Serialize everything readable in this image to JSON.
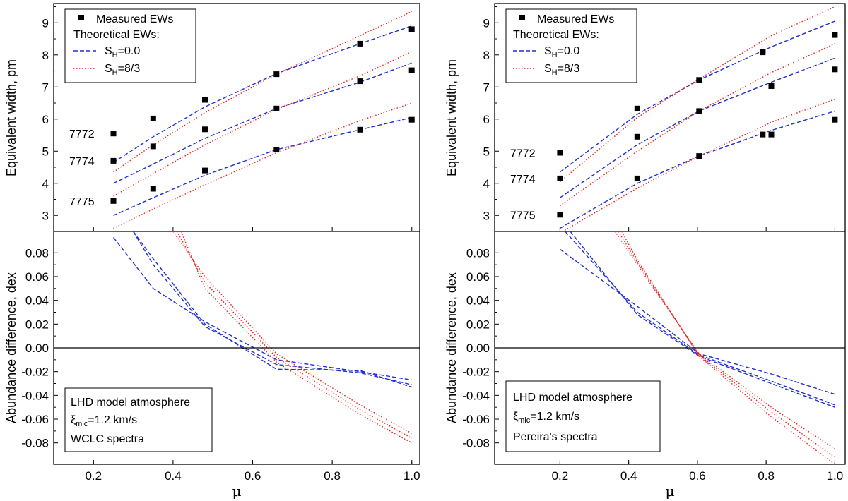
{
  "chart_data": [
    {
      "id": "left",
      "type": "line",
      "title": "",
      "xlabel": "μ",
      "xlim": [
        0.1,
        1.02
      ],
      "xticks": [
        0.2,
        0.4,
        0.6,
        0.8,
        1.0
      ],
      "xtick_labels": [
        "0.2",
        "0.4",
        "0.6",
        "0.8",
        "1.0"
      ],
      "top": {
        "ylabel": "Equivalent width, pm",
        "ylim": [
          2.5,
          9.6
        ],
        "yticks": [
          3,
          4,
          5,
          6,
          7,
          8,
          9
        ],
        "ytick_labels": [
          "3",
          "4",
          "5",
          "6",
          "7",
          "8",
          "9"
        ],
        "legend": {
          "measured": "Measured EWs",
          "theoretical": "Theoretical EWs:",
          "sh0_base": "S",
          "sh0_sub": "H",
          "sh0_rest": "=0.0",
          "sh83_base": "S",
          "sh83_sub": "H",
          "sh83_rest": "=8/3"
        },
        "line_labels": [
          {
            "text": "7772",
            "y": 5.55
          },
          {
            "text": "7774",
            "y": 4.7
          },
          {
            "text": "7775",
            "y": 3.45
          }
        ],
        "measured": [
          {
            "line": "7772",
            "x": [
              0.25,
              0.35,
              0.48,
              0.66,
              0.87,
              1.0
            ],
            "y": [
              5.55,
              6.02,
              6.6,
              7.4,
              8.35,
              8.8
            ]
          },
          {
            "line": "7774",
            "x": [
              0.25,
              0.35,
              0.48,
              0.66,
              0.87,
              1.0
            ],
            "y": [
              4.7,
              5.15,
              5.68,
              6.33,
              7.18,
              7.52
            ]
          },
          {
            "line": "7775",
            "x": [
              0.25,
              0.35,
              0.48,
              0.66,
              0.87,
              1.0
            ],
            "y": [
              3.45,
              3.83,
              4.4,
              5.05,
              5.67,
              5.98
            ]
          }
        ],
        "series": [
          {
            "name": "7772 SH=0.0",
            "style": "dashed",
            "x": [
              0.25,
              0.35,
              0.48,
              0.66,
              0.87,
              1.0
            ],
            "y": [
              4.65,
              5.45,
              6.38,
              7.42,
              8.35,
              8.9
            ]
          },
          {
            "name": "7772 SH=8/3",
            "style": "dotted",
            "x": [
              0.25,
              0.35,
              0.48,
              0.66,
              0.87,
              1.0
            ],
            "y": [
              4.35,
              5.2,
              6.2,
              7.4,
              8.6,
              9.35
            ]
          },
          {
            "name": "7774 SH=0.0",
            "style": "dashed",
            "x": [
              0.25,
              0.35,
              0.48,
              0.66,
              0.87,
              1.0
            ],
            "y": [
              4.0,
              4.6,
              5.4,
              6.33,
              7.15,
              7.75
            ]
          },
          {
            "name": "7774 SH=8/3",
            "style": "dotted",
            "x": [
              0.25,
              0.35,
              0.48,
              0.66,
              0.87,
              1.0
            ],
            "y": [
              3.6,
              4.3,
              5.2,
              6.3,
              7.35,
              8.1
            ]
          },
          {
            "name": "7775 SH=0.0",
            "style": "dashed",
            "x": [
              0.25,
              0.35,
              0.48,
              0.66,
              0.87,
              1.0
            ],
            "y": [
              3.0,
              3.55,
              4.25,
              5.05,
              5.67,
              6.05
            ]
          },
          {
            "name": "7775 SH=8/3",
            "style": "dotted",
            "x": [
              0.25,
              0.35,
              0.48,
              0.66,
              0.87,
              1.0
            ],
            "y": [
              2.6,
              3.2,
              3.95,
              4.95,
              5.95,
              6.5
            ]
          }
        ]
      },
      "bottom": {
        "ylabel": "Abundance difference, dex",
        "ylim": [
          -0.098,
          0.098
        ],
        "yticks": [
          -0.08,
          -0.06,
          -0.04,
          -0.02,
          0.0,
          0.02,
          0.04,
          0.06,
          0.08
        ],
        "ytick_labels": [
          "-0.08",
          "-0.06",
          "-0.04",
          "-0.02",
          "0.00",
          "0.02",
          "0.04",
          "0.06",
          "0.08"
        ],
        "info": {
          "line1": "LHD model atmosphere",
          "xi_symbol": "ξ",
          "xi_sub": "mic",
          "xi_rest": "=1.2 km/s",
          "line3": "WCLC spectra"
        },
        "series": [
          {
            "name": "7772 SH=0.0",
            "style": "dashed",
            "x": [
              0.25,
              0.35,
              0.48,
              0.66,
              0.87,
              1.0
            ],
            "y": [
              0.093,
              0.05,
              0.022,
              -0.01,
              -0.02,
              -0.027
            ]
          },
          {
            "name": "7774 SH=0.0",
            "style": "dashed",
            "x": [
              0.3,
              0.35,
              0.48,
              0.66,
              0.87,
              1.0
            ],
            "y": [
              0.098,
              0.07,
              0.018,
              -0.014,
              -0.021,
              -0.031
            ]
          },
          {
            "name": "7775 SH=0.0",
            "style": "dashed",
            "x": [
              0.3,
              0.35,
              0.48,
              0.66,
              0.87,
              1.0
            ],
            "y": [
              0.098,
              0.075,
              0.02,
              -0.018,
              -0.019,
              -0.033
            ]
          },
          {
            "name": "7772 SH=8/3",
            "style": "dotted",
            "x": [
              0.4,
              0.48,
              0.66,
              0.87,
              1.0
            ],
            "y": [
              0.098,
              0.06,
              -0.005,
              -0.048,
              -0.072
            ]
          },
          {
            "name": "7774 SH=8/3",
            "style": "dotted",
            "x": [
              0.41,
              0.48,
              0.66,
              0.87,
              1.0
            ],
            "y": [
              0.098,
              0.055,
              -0.008,
              -0.052,
              -0.076
            ]
          },
          {
            "name": "7775 SH=8/3",
            "style": "dotted",
            "x": [
              0.42,
              0.48,
              0.66,
              0.87,
              1.0
            ],
            "y": [
              0.098,
              0.05,
              -0.012,
              -0.056,
              -0.08
            ]
          }
        ]
      }
    },
    {
      "id": "right",
      "type": "line",
      "title": "",
      "xlabel": "μ",
      "xlim": [
        0.01,
        1.03
      ],
      "xticks": [
        0.2,
        0.4,
        0.6,
        0.8,
        1.0
      ],
      "xtick_labels": [
        "0.2",
        "0.4",
        "0.6",
        "0.8",
        "1.0"
      ],
      "top": {
        "ylabel": "Equivalent width, pm",
        "ylim": [
          2.5,
          9.6
        ],
        "yticks": [
          3,
          4,
          5,
          6,
          7,
          8,
          9
        ],
        "ytick_labels": [
          "3",
          "4",
          "5",
          "6",
          "7",
          "8",
          "9"
        ],
        "legend": {
          "measured": "Measured EWs",
          "theoretical": "Theoretical EWs:",
          "sh0_base": "S",
          "sh0_sub": "H",
          "sh0_rest": "=0.0",
          "sh83_base": "S",
          "sh83_sub": "H",
          "sh83_rest": "=8/3"
        },
        "line_labels": [
          {
            "text": "7772",
            "y": 4.95
          },
          {
            "text": "7774",
            "y": 4.15
          },
          {
            "text": "7775",
            "y": 3.02
          }
        ],
        "measured": [
          {
            "line": "7772",
            "x": [
              0.2,
              0.425,
              0.605,
              0.79,
              0.815,
              1.0
            ],
            "y": [
              4.95,
              6.33,
              7.22,
              8.08,
              7.03,
              8.62
            ]
          },
          {
            "line": "7774",
            "x": [
              0.2,
              0.425,
              0.605,
              0.79,
              0.815,
              1.0
            ],
            "y": [
              4.15,
              5.45,
              6.25,
              8.1,
              7.03,
              7.55
            ]
          },
          {
            "line": "7775",
            "x": [
              0.2,
              0.425,
              0.605,
              0.79,
              0.815,
              1.0
            ],
            "y": [
              3.02,
              4.15,
              4.85,
              5.52,
              5.52,
              5.98
            ]
          }
        ],
        "series": [
          {
            "name": "7772 SH=0.0",
            "style": "dashed",
            "x": [
              0.2,
              0.425,
              0.605,
              0.815,
              1.0
            ],
            "y": [
              4.35,
              6.15,
              7.22,
              8.25,
              9.05
            ]
          },
          {
            "name": "7772 SH=8/3",
            "style": "dotted",
            "x": [
              0.2,
              0.425,
              0.605,
              0.815,
              1.0
            ],
            "y": [
              4.05,
              6.05,
              7.25,
              8.6,
              9.5
            ]
          },
          {
            "name": "7774 SH=0.0",
            "style": "dashed",
            "x": [
              0.2,
              0.425,
              0.605,
              0.815,
              1.0
            ],
            "y": [
              3.55,
              5.2,
              6.25,
              7.15,
              7.9
            ]
          },
          {
            "name": "7774 SH=8/3",
            "style": "dotted",
            "x": [
              0.2,
              0.425,
              0.605,
              0.815,
              1.0
            ],
            "y": [
              3.3,
              5.0,
              6.25,
              7.45,
              8.35
            ]
          },
          {
            "name": "7775 SH=0.0",
            "style": "dashed",
            "x": [
              0.2,
              0.425,
              0.605,
              0.815,
              1.0
            ],
            "y": [
              2.6,
              4.0,
              4.85,
              5.65,
              6.25
            ]
          },
          {
            "name": "7775 SH=8/3",
            "style": "dotted",
            "x": [
              0.2,
              0.425,
              0.605,
              0.815,
              1.0
            ],
            "y": [
              2.45,
              3.85,
              4.85,
              5.9,
              6.62
            ]
          }
        ]
      },
      "bottom": {
        "ylabel": "Abundance difference, dex",
        "ylim": [
          -0.098,
          0.098
        ],
        "yticks": [
          -0.08,
          -0.06,
          -0.04,
          -0.02,
          0.0,
          0.02,
          0.04,
          0.06,
          0.08
        ],
        "ytick_labels": [
          "-0.08",
          "-0.06",
          "-0.04",
          "-0.02",
          "0.00",
          "0.02",
          "0.04",
          "0.06",
          "0.08"
        ],
        "info": {
          "line1": "LHD model atmosphere",
          "xi_symbol": "ξ",
          "xi_sub": "mic",
          "xi_rest": "=1.2 km/s",
          "line3": "Pereira's spectra"
        },
        "series": [
          {
            "name": "7772 SH=0.0",
            "style": "dashed",
            "x": [
              0.2,
              0.425,
              0.605,
              0.815,
              1.0
            ],
            "y": [
              0.083,
              0.035,
              -0.005,
              -0.022,
              -0.039
            ]
          },
          {
            "name": "7774 SH=0.0",
            "style": "dashed",
            "x": [
              0.215,
              0.425,
              0.605,
              0.815,
              1.0
            ],
            "y": [
              0.098,
              0.03,
              -0.006,
              -0.028,
              -0.048
            ]
          },
          {
            "name": "7775 SH=0.0",
            "style": "dashed",
            "x": [
              0.23,
              0.425,
              0.605,
              0.815,
              1.0
            ],
            "y": [
              0.098,
              0.028,
              -0.007,
              -0.03,
              -0.05
            ]
          },
          {
            "name": "7772 SH=8/3",
            "style": "dotted",
            "x": [
              0.36,
              0.425,
              0.605,
              0.815,
              1.0
            ],
            "y": [
              0.098,
              0.07,
              -0.005,
              -0.05,
              -0.085
            ]
          },
          {
            "name": "7774 SH=8/3",
            "style": "dotted",
            "x": [
              0.37,
              0.425,
              0.605,
              0.815,
              1.0
            ],
            "y": [
              0.098,
              0.072,
              -0.006,
              -0.054,
              -0.092
            ]
          },
          {
            "name": "7775 SH=8/3",
            "style": "dotted",
            "x": [
              0.38,
              0.425,
              0.605,
              0.815,
              1.0
            ],
            "y": [
              0.098,
              0.074,
              -0.007,
              -0.058,
              -0.098
            ]
          }
        ]
      }
    }
  ],
  "colors": {
    "dashed": "#1f2fd6",
    "dotted": "#e8231d",
    "marker": "#000000",
    "axis": "#000000"
  }
}
